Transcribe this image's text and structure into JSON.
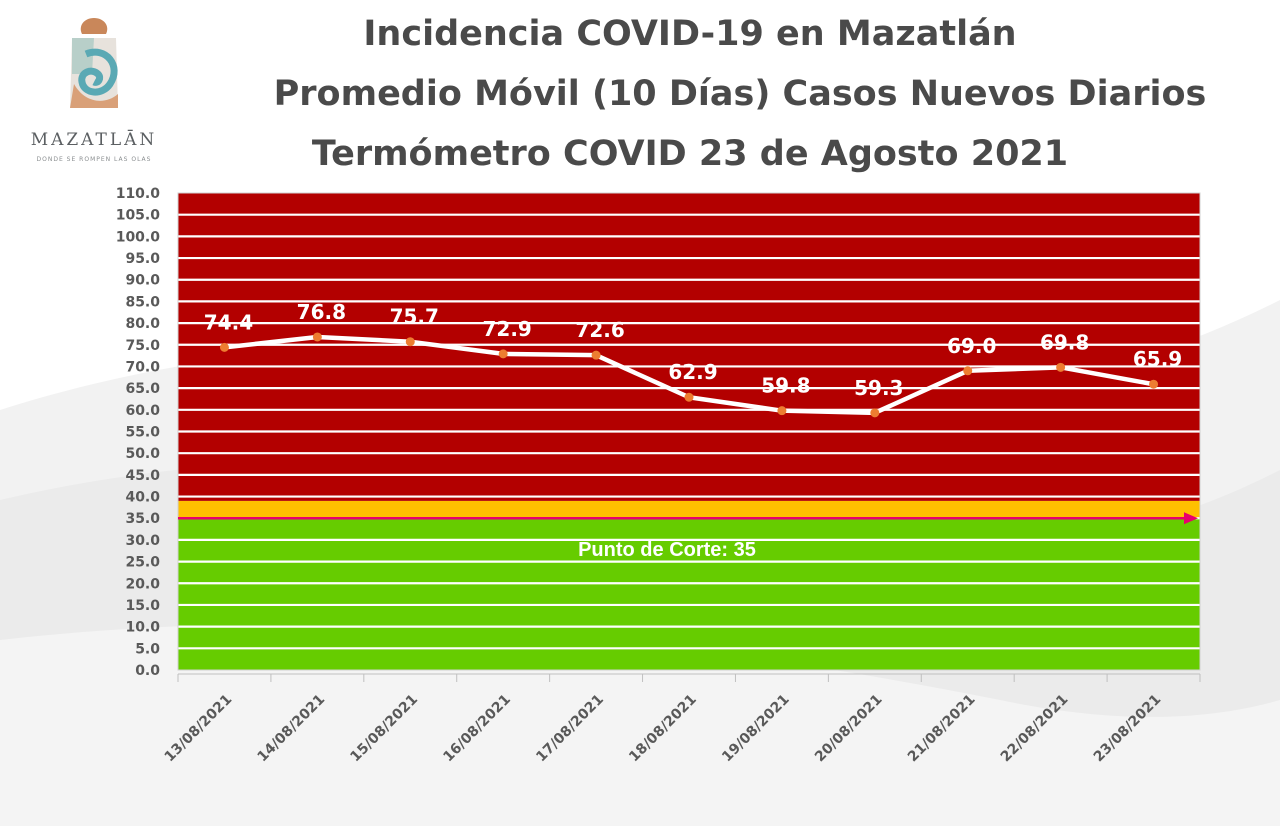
{
  "title": {
    "line1": "Incidencia COVID-19 en Mazatlán",
    "line2": "Promedio Móvil (10 Días) Casos Nuevos Diarios",
    "line3": "Termómetro COVID 23 de Agosto 2021"
  },
  "logo": {
    "name": "MAZATLĀN",
    "tagline": "DONDE SE ROMPEN LAS OLAS"
  },
  "colors": {
    "red_zone": "#b30000",
    "yellow_zone": "#ffc000",
    "green_zone": "#66cc00",
    "line": "#ffffff",
    "marker": "#ed7d31",
    "cutoff_line": "#e8006e"
  },
  "chart_data": {
    "type": "line",
    "categories": [
      "13/08/2021",
      "14/08/2021",
      "15/08/2021",
      "16/08/2021",
      "17/08/2021",
      "18/08/2021",
      "19/08/2021",
      "20/08/2021",
      "21/08/2021",
      "22/08/2021",
      "23/08/2021"
    ],
    "values": [
      74.4,
      76.8,
      75.7,
      72.9,
      72.6,
      62.9,
      59.8,
      59.3,
      69.0,
      69.8,
      65.9
    ],
    "data_labels": [
      "74.4",
      "76.8",
      "75.7",
      "72.9",
      "72.6",
      "62.9",
      "59.8",
      "59.3",
      "69.0",
      "69.8",
      "65.9"
    ],
    "ylim": [
      0,
      110
    ],
    "yticks": [
      "0.0",
      "5.0",
      "10.0",
      "15.0",
      "20.0",
      "25.0",
      "30.0",
      "35.0",
      "40.0",
      "45.0",
      "50.0",
      "55.0",
      "60.0",
      "65.0",
      "70.0",
      "75.0",
      "80.0",
      "85.0",
      "90.0",
      "95.0",
      "100.0",
      "105.0",
      "110.0"
    ],
    "grid": true,
    "bands": [
      {
        "from": 0,
        "to": 35,
        "color": "#66cc00"
      },
      {
        "from": 35,
        "to": 39,
        "color": "#ffc000"
      },
      {
        "from": 39,
        "to": 110,
        "color": "#b30000"
      }
    ],
    "cutoff": {
      "value": 35,
      "label": "Punto de Corte: 35"
    }
  }
}
